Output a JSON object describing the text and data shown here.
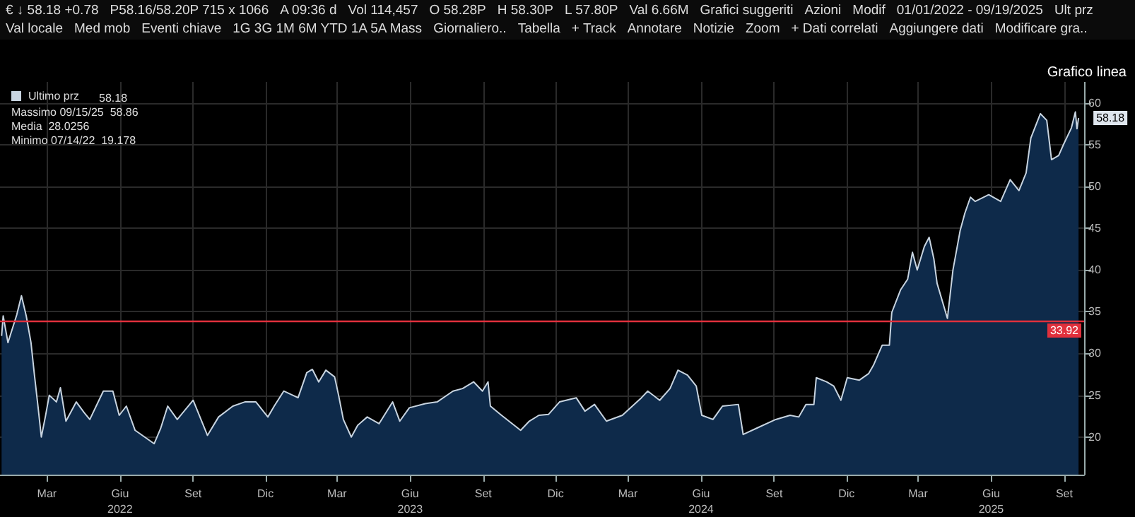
{
  "chart_data": {
    "type": "area",
    "title": "Grafico linea",
    "annotations": [
      "€ ↓ 58.18 +0.78",
      "P58.16/58.20P 715 x 1066",
      "A 09:36 d",
      "Vol 114,457",
      "O 58.28P",
      "H 58.30P",
      "L 57.80P",
      "Val 6.66M",
      "Grafici suggeriti",
      "Azioni",
      "Modif",
      "01/01/2022 - 09/19/2025",
      "Ult prz",
      "Val locale",
      "Med mob",
      "Eventi chiave",
      "1G 3G 1M 6M YTD 1A 5A Mass",
      "Giornaliero..",
      "Tabella",
      "+ Track",
      "Annotare",
      "Notizie",
      "Zoom",
      "+ Dati correlati",
      "Aggiungere dati",
      "Modificare gra..",
      {
        "text": "58.18",
        "x": "2025-09-19",
        "y": 58.18
      },
      "58.18",
      "Massimo 09/15/25  58.86",
      "Media  28.0256",
      "Minimo 07/14/22  19.178"
    ],
    "series": [
      {
        "name": "Ultimo prz",
        "color": "#c8d4e0",
        "x": [
          "2022-01-03",
          "2022-01-05",
          "2022-01-11",
          "2022-01-17",
          "2022-01-22",
          "2022-01-28",
          "2022-02-03",
          "2022-02-09",
          "2022-02-13",
          "2022-02-18",
          "2022-02-22",
          "2022-02-27",
          "2022-03-04",
          "2022-03-13",
          "2022-03-18",
          "2022-03-25",
          "2022-04-07",
          "2022-04-17",
          "2022-04-24",
          "2022-05-11",
          "2022-05-23",
          "2022-05-31",
          "2022-06-09",
          "2022-06-20",
          "2022-07-14",
          "2022-07-22",
          "2022-07-31",
          "2022-08-12",
          "2022-09-01",
          "2022-09-19",
          "2022-10-03",
          "2022-10-21",
          "2022-11-05",
          "2022-11-19",
          "2022-12-04",
          "2022-12-12",
          "2022-12-24",
          "2023-01-11",
          "2023-01-22",
          "2023-01-29",
          "2023-02-06",
          "2023-02-15",
          "2023-02-26",
          "2023-03-03",
          "2023-03-09",
          "2023-03-19",
          "2023-03-27",
          "2023-04-08",
          "2023-04-23",
          "2023-05-10",
          "2023-05-19",
          "2023-05-31",
          "2023-06-20",
          "2023-07-05",
          "2023-07-25",
          "2023-08-06",
          "2023-08-20",
          "2023-08-31",
          "2023-09-07",
          "2023-09-10",
          "2023-09-24",
          "2023-10-18",
          "2023-10-29",
          "2023-11-10",
          "2023-11-22",
          "2023-12-06",
          "2023-12-27",
          "2024-01-07",
          "2024-01-19",
          "2024-02-03",
          "2024-02-23",
          "2024-03-18",
          "2024-03-26",
          "2024-04-10",
          "2024-04-23",
          "2024-05-03",
          "2024-05-15",
          "2024-05-26",
          "2024-06-02",
          "2024-06-16",
          "2024-06-28",
          "2024-07-18",
          "2024-07-24",
          "2024-08-11",
          "2024-09-03",
          "2024-09-21",
          "2024-10-02",
          "2024-10-11",
          "2024-10-21",
          "2024-10-24",
          "2024-11-06",
          "2024-11-15",
          "2024-11-24",
          "2024-12-02",
          "2024-12-17",
          "2024-12-29",
          "2025-01-04",
          "2025-01-15",
          "2025-01-24",
          "2025-01-27",
          "2025-02-07",
          "2025-02-16",
          "2025-02-22",
          "2025-02-28",
          "2025-03-09",
          "2025-03-15",
          "2025-03-21",
          "2025-03-25",
          "2025-04-07",
          "2025-04-14",
          "2025-04-23",
          "2025-04-29",
          "2025-05-06",
          "2025-05-12",
          "2025-05-29",
          "2025-06-13",
          "2025-06-25",
          "2025-07-06",
          "2025-07-15",
          "2025-07-21",
          "2025-08-02",
          "2025-08-10",
          "2025-08-16",
          "2025-08-25",
          "2025-08-31",
          "2025-09-10",
          "2025-09-15",
          "2025-09-17",
          "2025-09-19"
        ],
        "values": [
          32.1,
          34.5,
          31.3,
          33.1,
          34.6,
          36.9,
          34.5,
          31.3,
          27.7,
          23.5,
          20.0,
          22.4,
          25.0,
          24.2,
          25.9,
          21.9,
          24.2,
          22.9,
          22.1,
          25.5,
          25.5,
          22.6,
          23.7,
          20.8,
          19.2,
          21.0,
          23.7,
          22.1,
          24.4,
          20.2,
          22.4,
          23.7,
          24.2,
          24.2,
          22.4,
          23.7,
          25.5,
          24.7,
          27.7,
          28.1,
          26.6,
          28.0,
          27.2,
          25.0,
          22.1,
          20.0,
          21.4,
          22.4,
          21.6,
          24.2,
          21.9,
          23.5,
          24.0,
          24.2,
          25.5,
          25.8,
          26.6,
          25.5,
          26.6,
          23.7,
          22.6,
          20.8,
          21.9,
          22.6,
          22.7,
          24.2,
          24.7,
          23.1,
          23.9,
          21.9,
          22.6,
          24.7,
          25.5,
          24.4,
          25.8,
          28.0,
          27.4,
          26.1,
          22.6,
          22.1,
          23.7,
          23.9,
          20.3,
          21.1,
          22.1,
          22.6,
          22.4,
          23.9,
          23.9,
          27.1,
          26.6,
          26.1,
          24.4,
          27.1,
          26.8,
          27.6,
          28.6,
          31.0,
          31.0,
          34.9,
          37.6,
          38.9,
          42.1,
          40.0,
          42.8,
          43.9,
          41.3,
          38.4,
          34.2,
          40.0,
          44.7,
          46.8,
          48.7,
          48.2,
          49.0,
          48.2,
          50.8,
          49.5,
          51.6,
          55.8,
          58.7,
          57.9,
          53.2,
          53.7,
          55.0,
          57.0,
          58.9,
          56.9,
          58.18
        ]
      }
    ],
    "xlim": [
      "2022-01-01",
      "2025-09-26"
    ],
    "xticks": [
      {
        "value": "2022-03-01",
        "label": "Mar"
      },
      {
        "value": "2022-06-01",
        "label": "Giu\n2022"
      },
      {
        "value": "2022-09-01",
        "label": "Set"
      },
      {
        "value": "2022-12-01",
        "label": "Dic"
      },
      {
        "value": "2023-03-01",
        "label": "Mar"
      },
      {
        "value": "2023-06-01",
        "label": "Giu\n2023"
      },
      {
        "value": "2023-09-01",
        "label": "Set"
      },
      {
        "value": "2023-12-01",
        "label": "Dic"
      },
      {
        "value": "2024-03-01",
        "label": "Mar"
      },
      {
        "value": "2024-06-01",
        "label": "Giu\n2024"
      },
      {
        "value": "2024-09-01",
        "label": "Set"
      },
      {
        "value": "2024-12-01",
        "label": "Dic"
      },
      {
        "value": "2025-03-01",
        "label": "Mar"
      },
      {
        "value": "2025-06-01",
        "label": "Giu\n2025"
      },
      {
        "value": "2025-09-01",
        "label": "Set"
      }
    ],
    "ylim": [
      15.5,
      62.5
    ],
    "yticks": [
      20,
      25,
      30,
      35,
      40,
      45,
      50,
      55,
      60
    ],
    "ref_lines": [
      {
        "axis": "y",
        "value": 33.92,
        "label": "33.92",
        "color": "#e0303c"
      }
    ],
    "grid": true,
    "legend": "top left",
    "marker": "none",
    "line_style": "solid"
  }
}
